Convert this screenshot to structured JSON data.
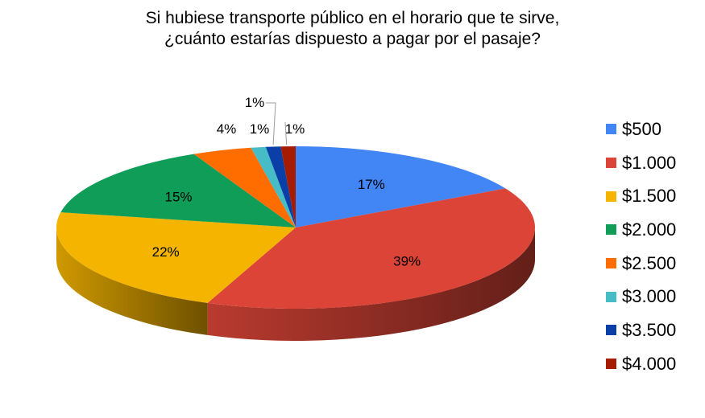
{
  "chart_data": {
    "type": "pie",
    "title_lines": [
      "Si hubiese transporte público en el horario que te sirve,",
      "¿cuánto estarías dispuesto a pagar por el pasaje?"
    ],
    "legend_placement": "right",
    "slices": [
      {
        "label": "$500",
        "value": 17,
        "value_label": "17%",
        "color": "#4285f4"
      },
      {
        "label": "$1.000",
        "value": 39,
        "value_label": "39%",
        "color": "#db4437"
      },
      {
        "label": "$1.500",
        "value": 22,
        "value_label": "22%",
        "color": "#f4b400"
      },
      {
        "label": "$2.000",
        "value": 15,
        "value_label": "15%",
        "color": "#0f9d58"
      },
      {
        "label": "$2.500",
        "value": 4,
        "value_label": "4%",
        "color": "#ff6d00"
      },
      {
        "label": "$3.000",
        "value": 1,
        "value_label": "1%",
        "color": "#46bdc6"
      },
      {
        "label": "$3.500",
        "value": 1,
        "value_label": "1%",
        "color": "#0b3fa8"
      },
      {
        "label": "$4.000",
        "value": 1,
        "value_label": "1%",
        "color": "#a61c00"
      }
    ]
  }
}
